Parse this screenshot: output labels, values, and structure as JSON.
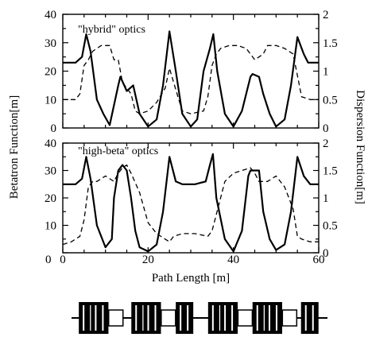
{
  "chart_data": [
    {
      "type": "line",
      "panel_label": "\"hybrid\" optics",
      "x_range": [
        0,
        60
      ],
      "y_left_range": [
        0,
        40
      ],
      "y_right_range": [
        0,
        2
      ],
      "y_left_ticks": [
        "40",
        "30",
        "20",
        "10",
        "0"
      ],
      "y_right_ticks": [
        "2",
        "1.5",
        "1",
        "0.5",
        "0"
      ],
      "series": [
        {
          "axis": "left",
          "style": "solid",
          "x": [
            0,
            3,
            4.5,
            5.5,
            6.5,
            8,
            9.5,
            11,
            12,
            13,
            13.5,
            15,
            16.5,
            18,
            20,
            22,
            23.5,
            25,
            26.5,
            28,
            30,
            31.5,
            33,
            34.5,
            35.3,
            36.2,
            38,
            40,
            42,
            44,
            44.5,
            46,
            47,
            48.5,
            50,
            52,
            53.5,
            55,
            56.5,
            57.5,
            59,
            60
          ],
          "y": [
            23,
            23,
            25,
            33,
            27,
            10,
            5,
            1,
            8,
            15,
            18,
            13,
            15,
            5,
            0.5,
            3,
            15,
            34,
            20,
            5,
            0.5,
            3,
            20,
            28,
            33,
            20,
            5,
            0.5,
            6,
            18,
            19,
            18,
            12,
            5,
            0.5,
            3,
            15,
            32,
            26,
            23,
            23,
            23
          ]
        },
        {
          "axis": "right",
          "style": "dashed",
          "x": [
            0,
            3,
            4,
            5,
            6,
            7,
            9,
            11,
            12,
            13,
            14,
            16,
            17,
            18,
            20,
            22,
            24,
            25,
            26,
            28,
            30,
            33,
            34,
            35,
            36,
            37,
            39,
            41,
            43,
            45,
            47,
            48,
            50,
            52,
            54,
            56,
            58,
            60
          ],
          "y": [
            0.5,
            0.5,
            0.6,
            1.1,
            1.2,
            1.35,
            1.45,
            1.45,
            1.2,
            1.2,
            0.8,
            0.6,
            0.3,
            0.25,
            0.3,
            0.45,
            0.7,
            1.05,
            0.8,
            0.3,
            0.25,
            0.3,
            0.55,
            1.1,
            1.3,
            1.4,
            1.45,
            1.45,
            1.4,
            1.2,
            1.3,
            1.45,
            1.45,
            1.4,
            1.3,
            0.55,
            0.5,
            0.5
          ]
        }
      ]
    },
    {
      "type": "line",
      "panel_label": "\"high-beta\" optics",
      "x_range": [
        0,
        60
      ],
      "y_left_range": [
        0,
        40
      ],
      "y_right_range": [
        0,
        2
      ],
      "y_left_ticks": [
        "40",
        "30",
        "20",
        "10",
        "0"
      ],
      "y_right_ticks": [
        "2",
        "1.5",
        "1",
        "0.5",
        "0"
      ],
      "series": [
        {
          "axis": "left",
          "style": "solid",
          "x": [
            0,
            3,
            4.5,
            5.5,
            6.5,
            8,
            10,
            11.5,
            12,
            13,
            14,
            15,
            16,
            17,
            18,
            20,
            22,
            23.5,
            25,
            26.5,
            28,
            31,
            33.5,
            34.5,
            35.2,
            36,
            38,
            40,
            42,
            43.5,
            44,
            46,
            47,
            48.5,
            50,
            52,
            53.5,
            55,
            56.5,
            58,
            60
          ],
          "y": [
            25,
            25,
            27,
            35,
            27,
            10,
            2,
            5,
            20,
            30,
            32,
            30,
            20,
            8,
            2,
            0.5,
            3,
            15,
            35,
            26,
            25,
            25,
            26,
            32,
            36,
            20,
            5,
            0.5,
            8,
            28,
            30,
            30,
            15,
            5,
            1,
            3,
            15,
            35,
            28,
            25,
            25
          ]
        },
        {
          "axis": "right",
          "style": "dashed",
          "x": [
            0,
            2,
            4,
            5,
            6,
            7,
            8,
            10,
            12,
            13,
            14,
            15,
            16,
            18,
            20,
            22,
            24,
            25,
            26,
            28,
            31,
            34,
            35,
            36,
            38,
            40,
            42,
            44,
            45,
            46,
            48,
            50,
            52,
            54,
            55,
            56,
            58,
            60
          ],
          "y": [
            0.15,
            0.2,
            0.3,
            0.6,
            1.2,
            1.3,
            1.3,
            1.4,
            1.3,
            1.45,
            1.55,
            1.6,
            1.45,
            1.1,
            0.55,
            0.35,
            0.25,
            0.2,
            0.3,
            0.35,
            0.35,
            0.3,
            0.4,
            0.7,
            1.3,
            1.45,
            1.5,
            1.55,
            1.45,
            1.3,
            1.3,
            1.4,
            1.2,
            0.8,
            0.3,
            0.25,
            0.2,
            0.2
          ]
        }
      ]
    }
  ],
  "axes": {
    "x_label": "Path Length [m]",
    "x_ticks": [
      "0",
      "20",
      "40",
      "60"
    ],
    "left_label": "Betatron Function[m]",
    "right_label": "Dispersion Function[m]",
    "x_origin_label": "0"
  },
  "lattice": {
    "elements": [
      {
        "type": "bend",
        "x": 2
      },
      {
        "type": "bend",
        "x": 5
      },
      {
        "type": "quad",
        "x": 9
      },
      {
        "type": "bend",
        "x": 15
      },
      {
        "type": "bend",
        "x": 18
      },
      {
        "type": "quad",
        "x": 22
      },
      {
        "type": "bend",
        "x": 26
      },
      {
        "type": "bend",
        "x": 34
      },
      {
        "type": "bend",
        "x": 37
      },
      {
        "type": "quad",
        "x": 41
      },
      {
        "type": "bend",
        "x": 45
      },
      {
        "type": "bend",
        "x": 48
      },
      {
        "type": "quad",
        "x": 52
      },
      {
        "type": "bend",
        "x": 57
      }
    ]
  }
}
